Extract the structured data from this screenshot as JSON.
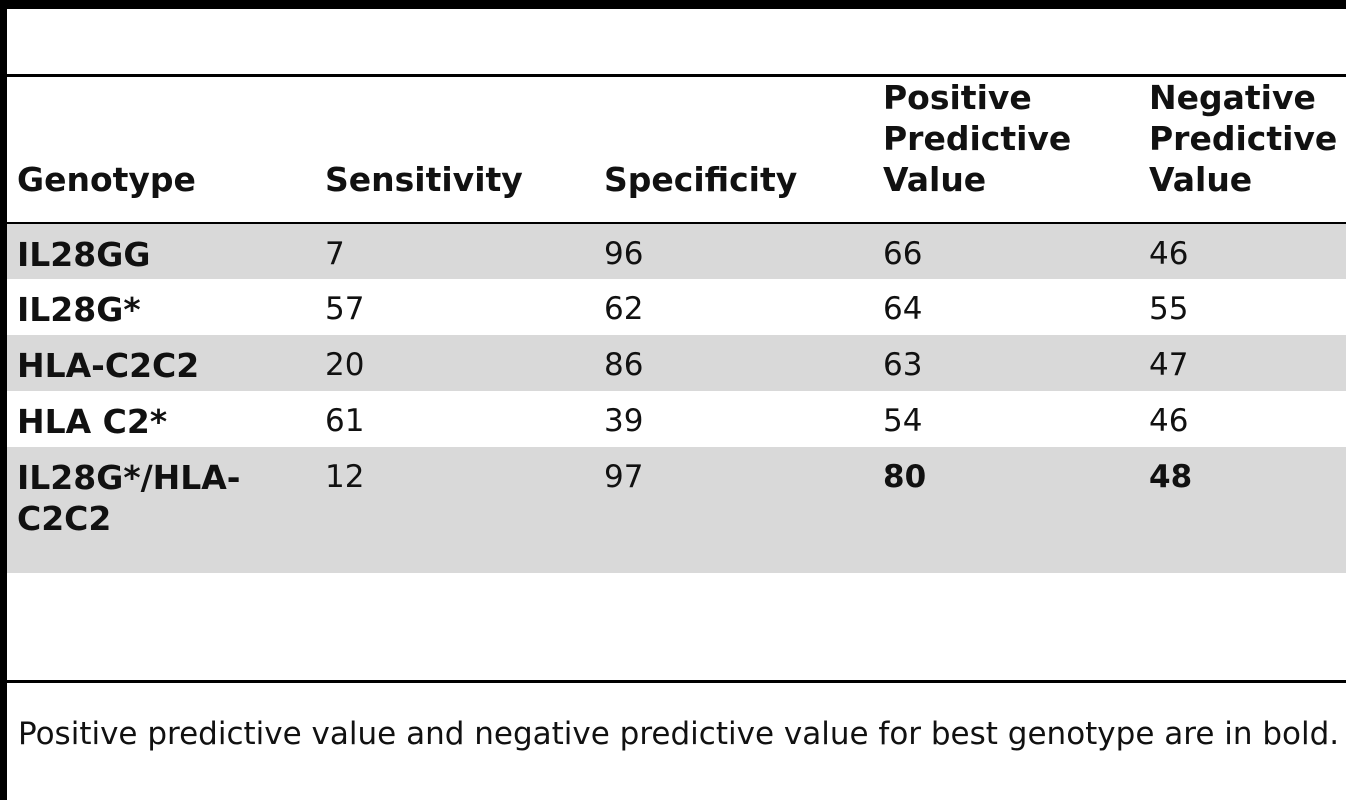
{
  "table": {
    "headers": [
      "Genotype",
      "Sensitivity",
      "Specificity",
      "Positive Predictive Value",
      "Negative Predictive Value"
    ],
    "rows": [
      {
        "genotype": "IL28GG",
        "sensitivity": "7",
        "specificity": "96",
        "ppv": "66",
        "npv": "46"
      },
      {
        "genotype": "IL28G*",
        "sensitivity": "57",
        "specificity": "62",
        "ppv": "64",
        "npv": "55"
      },
      {
        "genotype": "HLA-C2C2",
        "sensitivity": "20",
        "specificity": "86",
        "ppv": "63",
        "npv": "47"
      },
      {
        "genotype": "HLA C2*",
        "sensitivity": "61",
        "specificity": "39",
        "ppv": "54",
        "npv": "46"
      },
      {
        "genotype": "IL28G*/HLA-C2C2",
        "sensitivity": "12",
        "specificity": "97",
        "ppv": "80",
        "npv": "48"
      }
    ]
  },
  "footnote": "Positive predictive value and negative predictive value for best genotype are in bold."
}
